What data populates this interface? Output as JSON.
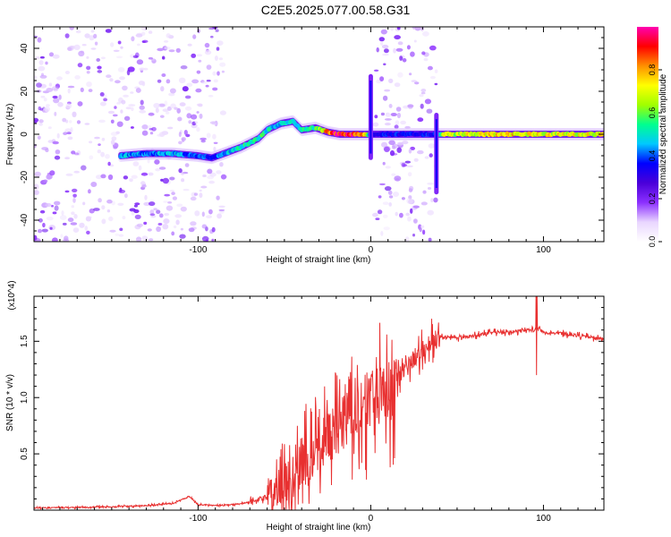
{
  "title": "C2E5.2025.077.00.58.G31",
  "chart_data": [
    {
      "type": "heatmap",
      "xlabel": "Height of straight line (km)",
      "ylabel": "Frequency (Hz)",
      "xlim": [
        -195,
        135
      ],
      "ylim": [
        -50,
        50
      ],
      "x_ticks": [
        -100,
        0,
        100
      ],
      "y_ticks": [
        -40,
        -20,
        0,
        20,
        40
      ],
      "colorbar": {
        "label": "Normalized spectral amplitude",
        "range": [
          0,
          1
        ],
        "ticks": [
          0.0,
          0.2,
          0.4,
          0.6,
          0.8
        ],
        "colormap": [
          "#ffffff",
          "#e9d6ff",
          "#8c30ff",
          "#4a00d9",
          "#0000ff",
          "#00c8ff",
          "#00ff90",
          "#a0ff00",
          "#ffff00",
          "#ff9000",
          "#ff0000",
          "#ff00b0"
        ]
      },
      "noise_regions": [
        {
          "x": [
            -195,
            -85
          ],
          "y": [
            -50,
            50
          ]
        },
        {
          "x": [
            2,
            38
          ],
          "y": [
            -50,
            50
          ]
        }
      ],
      "signal_ridge": {
        "x": [
          -145,
          -130,
          -115,
          -100,
          -92,
          -85,
          -75,
          -65,
          -60,
          -52,
          -45,
          -40,
          -32,
          -25,
          -18,
          -10,
          -3,
          0,
          5,
          20,
          35,
          38,
          42,
          60,
          80,
          100,
          120,
          135
        ],
        "y": [
          -10,
          -9,
          -9,
          -10,
          -11,
          -9,
          -6,
          -2,
          2,
          5,
          6,
          2,
          3,
          1,
          0,
          0,
          0,
          0,
          0,
          0,
          0,
          0,
          0,
          0,
          0,
          0,
          0,
          0
        ],
        "amplitude": [
          0.45,
          0.4,
          0.45,
          0.4,
          0.35,
          0.45,
          0.5,
          0.55,
          0.5,
          0.45,
          0.5,
          0.5,
          0.55,
          0.8,
          0.95,
          0.95,
          0.7,
          0.3,
          0.35,
          0.35,
          0.35,
          0.35,
          0.65,
          0.7,
          0.75,
          0.7,
          0.7,
          0.7
        ]
      }
    },
    {
      "type": "line",
      "xlabel": "Height of straight line (km)",
      "ylabel": "SNR (10 * v/v)",
      "y_multiplier": "(x10^4)",
      "xlim": [
        -195,
        135
      ],
      "ylim": [
        0,
        1.9
      ],
      "x_ticks": [
        -100,
        0,
        100
      ],
      "y_ticks": [
        0.5,
        1.0,
        1.5
      ],
      "color": "#e83030",
      "series": [
        {
          "x": [
            -195,
            -170,
            -150,
            -130,
            -115,
            -105,
            -100,
            -90,
            -80,
            -70,
            -60,
            -50,
            -45,
            -40,
            -35,
            -30,
            -25,
            -20,
            -15,
            -10,
            -5,
            0,
            5,
            10,
            15,
            20,
            25,
            30,
            35,
            40,
            50,
            60,
            70,
            80,
            90,
            95,
            96,
            100,
            110,
            120,
            135
          ],
          "y": [
            0.02,
            0.025,
            0.03,
            0.04,
            0.06,
            0.12,
            0.05,
            0.04,
            0.05,
            0.07,
            0.12,
            0.2,
            0.3,
            0.38,
            0.45,
            0.55,
            0.65,
            0.72,
            0.78,
            0.85,
            0.9,
            1.0,
            1.02,
            1.08,
            1.15,
            1.25,
            1.35,
            1.43,
            1.5,
            1.55,
            1.53,
            1.55,
            1.58,
            1.58,
            1.6,
            1.6,
            1.62,
            1.58,
            1.57,
            1.55,
            1.52
          ]
        }
      ]
    }
  ]
}
